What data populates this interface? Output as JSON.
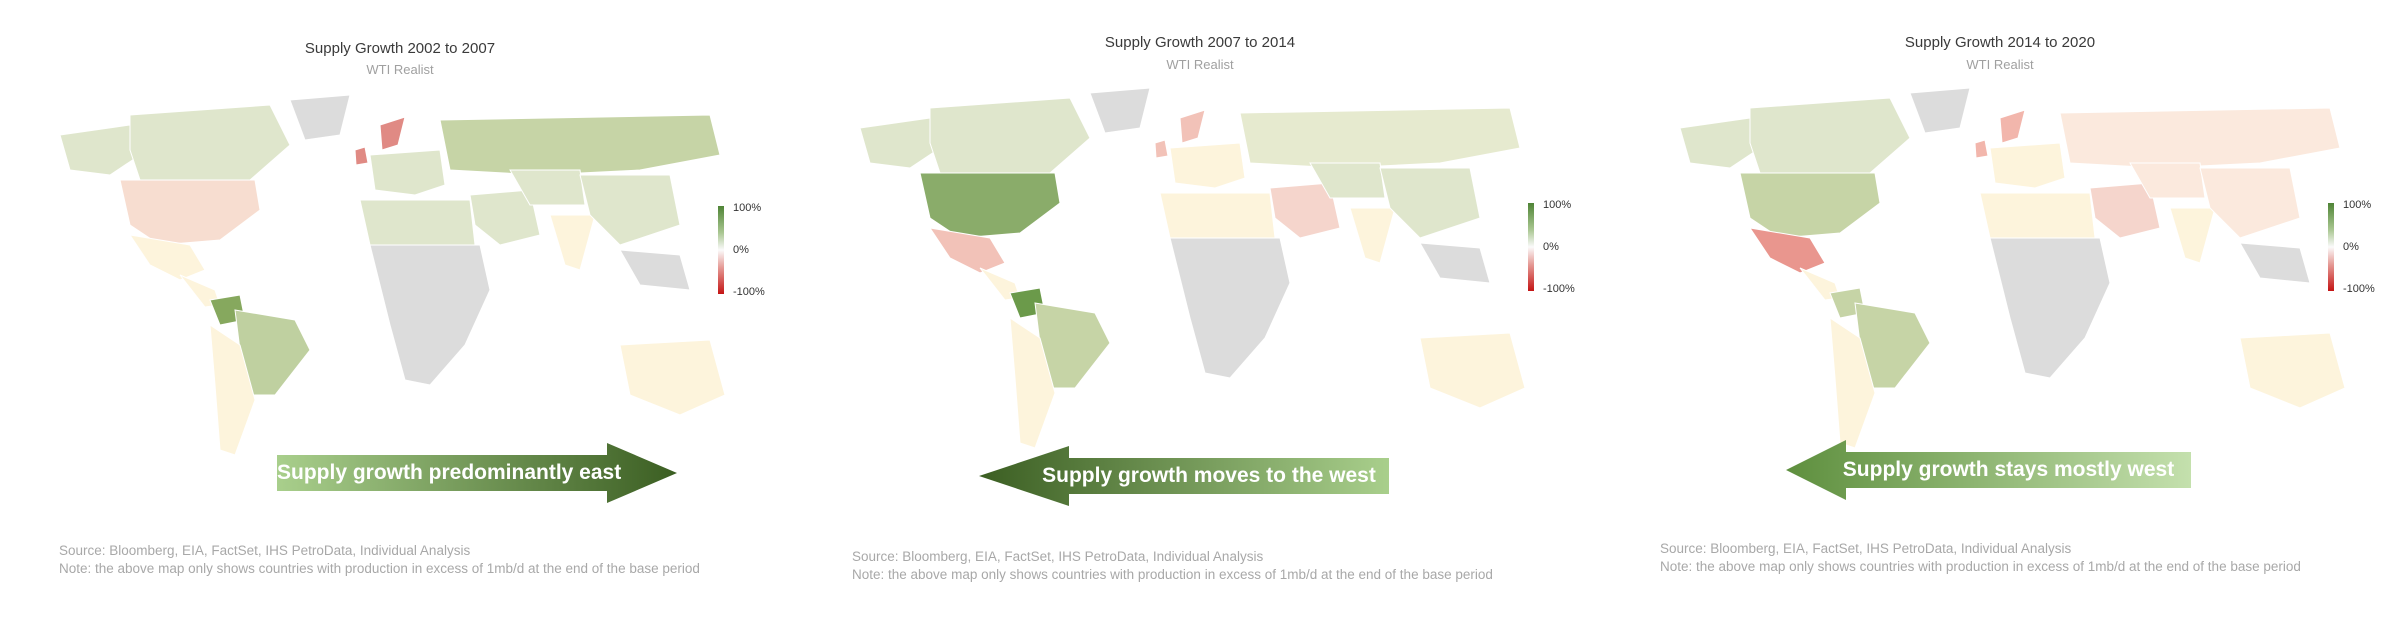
{
  "panels": [
    {
      "title": "Supply Growth 2002 to 2007",
      "subtitle": "WTI Realist",
      "arrow": {
        "text": "Supply growth predominantly east",
        "direction": "east"
      },
      "legend": {
        "max": "100%",
        "mid": "0%",
        "min": "-100%"
      },
      "colors": {
        "north_america": "#f7ddd0",
        "canada": "#dfe6cc",
        "mexico": "#fdf4dc",
        "latin_america": "#fdf4dc",
        "brazil": "#bfd0a0",
        "europe": "#dfe6cc",
        "russia": "#c6d4a6",
        "africa": "#dcdcdc",
        "middle_east": "#dfe6cc",
        "asia": "#dfe6cc",
        "china": "#dfe6cc",
        "australia": "#fdf4dc",
        "accent": "#e08a84",
        "strong": "#86a85e"
      },
      "source": "Source: Bloomberg, EIA, FactSet, IHS PetroData, Individual Analysis",
      "note": "Note: the above map only shows countries with production in excess of 1mb/d at the end of the base period"
    },
    {
      "title": "Supply Growth 2007 to 2014",
      "subtitle": "WTI Realist",
      "arrow": {
        "text": "Supply growth moves to the west",
        "direction": "west"
      },
      "legend": {
        "max": "100%",
        "mid": "0%",
        "min": "-100%"
      },
      "colors": {
        "north_america": "#8aac6a",
        "canada": "#dfe6cc",
        "mexico": "#f2c2b8",
        "latin_america": "#fdf4dc",
        "brazil": "#c6d4a6",
        "europe": "#fdf4dc",
        "russia": "#e6eacf",
        "africa": "#dcdcdc",
        "middle_east": "#f5d5cc",
        "asia": "#dfe6cc",
        "china": "#dfe6cc",
        "australia": "#fdf4dc",
        "accent": "#f2c2b8",
        "strong": "#6b9a4a"
      },
      "source": "Source: Bloomberg, EIA, FactSet, IHS PetroData, Individual Analysis",
      "note": "Note: the above map only shows countries with production in excess of 1mb/d at the end of the base period"
    },
    {
      "title": "Supply Growth 2014 to 2020",
      "subtitle": "WTI Realist",
      "arrow": {
        "text": "Supply growth stays mostly west",
        "direction": "west"
      },
      "legend": {
        "max": "100%",
        "mid": "0%",
        "min": "-100%"
      },
      "colors": {
        "north_america": "#c6d4a6",
        "canada": "#dfe6cc",
        "mexico": "#e9968e",
        "latin_america": "#fdf4dc",
        "brazil": "#c6d4a6",
        "europe": "#fdf4dc",
        "russia": "#fbe9dd",
        "africa": "#dcdcdc",
        "middle_east": "#f5d5cc",
        "asia": "#fbe9dd",
        "china": "#fbe9dd",
        "australia": "#fdf4dc",
        "accent": "#f2b6ac",
        "strong": "#c6d4a6"
      },
      "source": "Source: Bloomberg, EIA, FactSet, IHS PetroData, Individual Analysis",
      "note": "Note: the above map only shows countries with production in excess of 1mb/d at the end of the base period"
    }
  ]
}
